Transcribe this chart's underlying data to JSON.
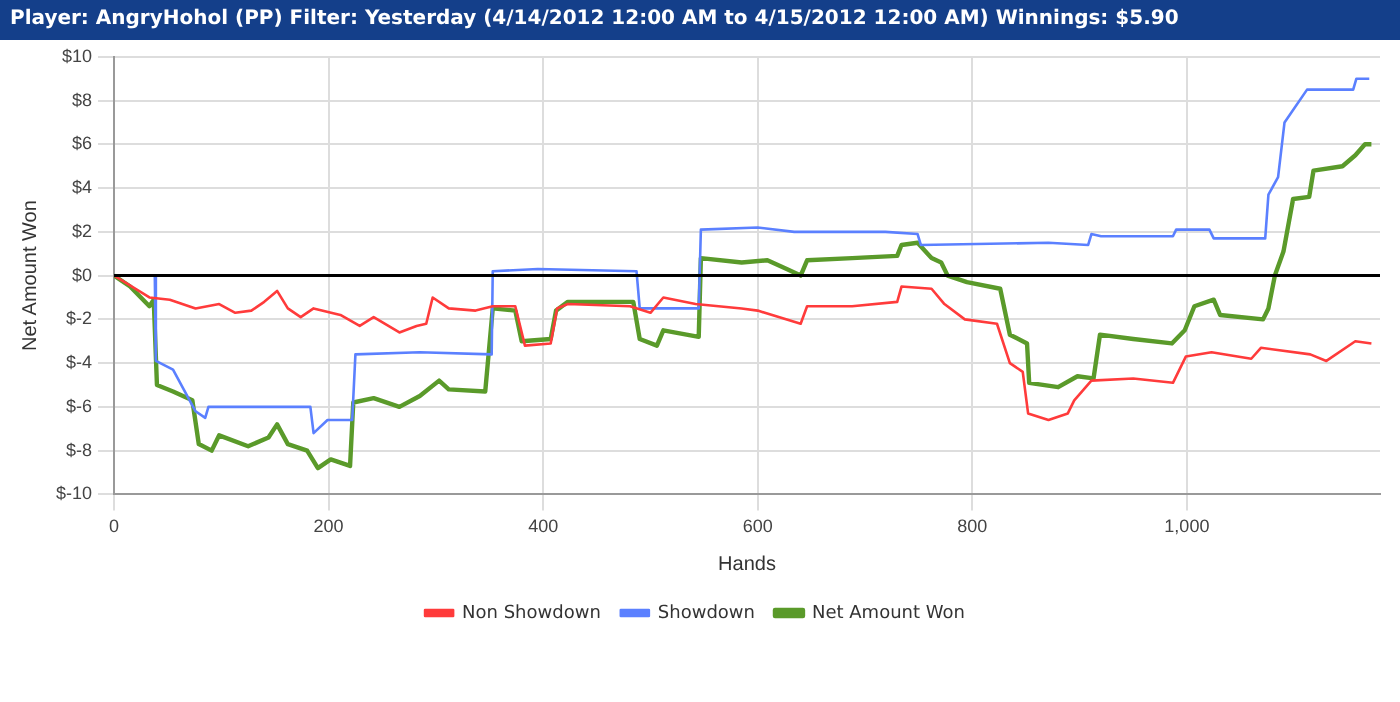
{
  "chart_data": {
    "type": "line",
    "title": "Player: AngryHohol (PP) Filter: Yesterday (4/14/2012 12:00 AM to 4/15/2012 12:00 AM) Winnings: $5.90",
    "xlabel": "Hands",
    "ylabel": "Net Amount Won",
    "xlim": [
      0,
      1180
    ],
    "xticks": [
      0,
      200,
      400,
      600,
      800,
      {
        "value": 1000,
        "label": "1,000"
      }
    ],
    "ylim": [
      -10,
      10
    ],
    "yticks": [
      {
        "value": -10,
        "label": "$-10"
      },
      {
        "value": -8,
        "label": "$-8"
      },
      {
        "value": -6,
        "label": "$-6"
      },
      {
        "value": -4,
        "label": "$-4"
      },
      {
        "value": -2,
        "label": "$-2"
      },
      {
        "value": 0,
        "label": "$0"
      },
      {
        "value": 2,
        "label": "$2"
      },
      {
        "value": 4,
        "label": "$4"
      },
      {
        "value": 6,
        "label": "$6"
      },
      {
        "value": 8,
        "label": "$8"
      },
      {
        "value": 10,
        "label": "$10"
      }
    ],
    "grid": true,
    "legend": "bottom",
    "marker": "none",
    "line_style": "solid",
    "ref_lines": [
      {
        "axis": "y",
        "value": 0,
        "color": "#000000"
      }
    ],
    "series": [
      {
        "name": "Non Showdown",
        "color": "#ff3b3b",
        "x": [
          0,
          33,
          52,
          76,
          98,
          113,
          128,
          140,
          152,
          162,
          174,
          186,
          211,
          229,
          242,
          266,
          282,
          291,
          297,
          312,
          337,
          353,
          374,
          383,
          407,
          413,
          423,
          481,
          500,
          512,
          542,
          585,
          600,
          640,
          646,
          688,
          730,
          734,
          762,
          774,
          793,
          823,
          835,
          847,
          852,
          871,
          889,
          895,
          911,
          950,
          987,
          999,
          1023,
          1060,
          1069,
          1115,
          1130,
          1157,
          1172
        ],
        "values": [
          0,
          -1.0,
          -1.1,
          -1.5,
          -1.3,
          -1.7,
          -1.6,
          -1.2,
          -0.7,
          -1.5,
          -1.9,
          -1.5,
          -1.8,
          -2.3,
          -1.9,
          -2.6,
          -2.3,
          -2.2,
          -1.0,
          -1.5,
          -1.6,
          -1.4,
          -1.4,
          -3.2,
          -3.1,
          -1.5,
          -1.3,
          -1.4,
          -1.7,
          -1.0,
          -1.3,
          -1.5,
          -1.6,
          -2.2,
          -1.4,
          -1.4,
          -1.2,
          -0.5,
          -0.6,
          -1.3,
          -2.0,
          -2.2,
          -4.0,
          -4.4,
          -6.3,
          -6.6,
          -6.3,
          -5.7,
          -4.8,
          -4.7,
          -4.9,
          -3.7,
          -3.5,
          -3.8,
          -3.3,
          -3.6,
          -3.9,
          -3.0,
          -3.1
        ]
      },
      {
        "name": "Showdown",
        "color": "#5b80ff",
        "x": [
          0,
          38,
          39,
          55,
          76,
          85,
          88,
          183,
          186,
          199,
          222,
          225,
          285,
          352,
          353,
          395,
          487,
          490,
          545,
          547,
          600,
          634,
          719,
          749,
          752,
          871,
          908,
          911,
          920,
          987,
          990,
          1021,
          1025,
          1073,
          1076,
          1085,
          1091,
          1112,
          1155,
          1158,
          1170
        ],
        "values": [
          0,
          0,
          -3.9,
          -4.3,
          -6.2,
          -6.5,
          -6.0,
          -6.0,
          -7.2,
          -6.6,
          -6.6,
          -3.6,
          -3.5,
          -3.6,
          0.2,
          0.3,
          0.2,
          -1.5,
          -1.5,
          2.1,
          2.2,
          2.0,
          2.0,
          1.9,
          1.4,
          1.5,
          1.4,
          1.9,
          1.8,
          1.8,
          2.1,
          2.1,
          1.7,
          1.7,
          3.7,
          4.5,
          7.0,
          8.5,
          8.5,
          9.0,
          9.0
        ]
      },
      {
        "name": "Net Amount Won",
        "color": "#5a9a2a",
        "x": [
          0,
          15,
          33,
          37,
          40,
          55,
          73,
          79,
          91,
          98,
          125,
          144,
          152,
          162,
          180,
          190,
          202,
          220,
          223,
          242,
          266,
          285,
          303,
          312,
          346,
          353,
          374,
          380,
          407,
          412,
          423,
          484,
          490,
          506,
          512,
          545,
          547,
          585,
          609,
          627,
          640,
          646,
          688,
          730,
          734,
          749,
          762,
          771,
          777,
          795,
          826,
          835,
          851,
          853,
          880,
          898,
          913,
          919,
          950,
          986,
          998,
          1007,
          1025,
          1031,
          1071,
          1076,
          1082,
          1090,
          1099,
          1114,
          1118,
          1145,
          1157,
          1166,
          1172
        ],
        "values": [
          0,
          -0.5,
          -1.4,
          -1.1,
          -5.0,
          -5.3,
          -5.7,
          -7.7,
          -8.0,
          -7.3,
          -7.8,
          -7.4,
          -6.8,
          -7.7,
          -8.0,
          -8.8,
          -8.4,
          -8.7,
          -5.8,
          -5.6,
          -6.0,
          -5.5,
          -4.8,
          -5.2,
          -5.3,
          -1.5,
          -1.6,
          -3.0,
          -2.9,
          -1.6,
          -1.2,
          -1.2,
          -2.9,
          -3.2,
          -2.5,
          -2.8,
          0.8,
          0.6,
          0.7,
          0.3,
          0.0,
          0.7,
          0.8,
          0.9,
          1.4,
          1.5,
          0.8,
          0.6,
          0.0,
          -0.3,
          -0.6,
          -2.7,
          -3.1,
          -4.9,
          -5.1,
          -4.6,
          -4.7,
          -2.7,
          -2.9,
          -3.1,
          -2.5,
          -1.4,
          -1.1,
          -1.8,
          -2.0,
          -1.5,
          0.0,
          1.1,
          3.5,
          3.6,
          4.8,
          5.0,
          5.5,
          6.0,
          6.0
        ]
      }
    ]
  }
}
